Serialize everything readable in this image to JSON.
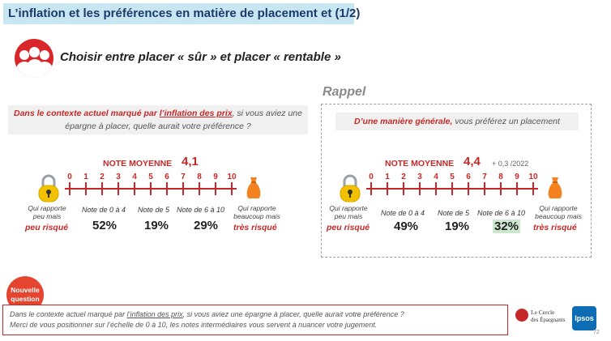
{
  "header": {
    "title": "L’inflation et les préférences en matière de placement et (1/2)"
  },
  "hero": {
    "icon": "people-covering-faces-icon",
    "title": "Choisir entre placer « sûr » et placer « rentable »"
  },
  "rappel": "Rappel",
  "left": {
    "question_pre": "Dans le contexte actuel marqué par ",
    "question_link": "l’inflation des prix",
    "question_post": ", si vous aviez une épargne à placer, quelle aurait votre préférence ?",
    "note_label": "NOTE MOYENNE",
    "note_value": "4,1",
    "scale": [
      "0",
      "1",
      "2",
      "3",
      "4",
      "5",
      "6",
      "7",
      "8",
      "9",
      "10"
    ],
    "left_label": "Qui rapporte peu mais",
    "left_risk": "peu risqué",
    "right_label": "Qui rapporte beaucoup mais",
    "right_risk": "très risqué",
    "groups": [
      {
        "label": "Note de 0 à 4",
        "value": "52%"
      },
      {
        "label": "Note de 5",
        "value": "19%"
      },
      {
        "label": "Note de 6 à 10",
        "value": "29%"
      }
    ]
  },
  "right": {
    "question_bold": "D’une manière générale,",
    "question_rest": " vous préférez un placement",
    "note_label": "NOTE MOYENNE",
    "note_value": "4,4",
    "delta": "+ 0,3 /2022",
    "scale": [
      "0",
      "1",
      "2",
      "3",
      "4",
      "5",
      "6",
      "7",
      "8",
      "9",
      "10"
    ],
    "left_label": "Qui rapporte peu mais",
    "left_risk": "peu risqué",
    "right_label": "Qui rapporte beaucoup mais",
    "right_risk": "très risqué",
    "groups": [
      {
        "label": "Note de 0 à 4",
        "value": "49%"
      },
      {
        "label": "Note de 5",
        "value": "19%"
      },
      {
        "label": "Note de 6 à 10",
        "value": "32%",
        "highlight": true
      }
    ]
  },
  "badge": {
    "line1": "Nouvelle",
    "line2": "question"
  },
  "footer": {
    "line1_pre": "Dans le contexte actuel marqué par ",
    "line1_link": "l’inflation des prix",
    "line1_post": ", si vous aviez une épargne à placer, quelle aurait votre préférence ?",
    "line2": "Merci de vous positionner sur l’échelle de 0 à 10, les notes intermédiaires vous servent à nuancer votre jugement."
  },
  "logos": {
    "cercle_line1": "Le Cercle",
    "cercle_line2": "des Épargnants",
    "ipsos": "Ipsos"
  },
  "page_number": "72",
  "colors": {
    "accent": "#c62828",
    "title_bg": "#c8e6f2",
    "highlight": "#cde8cf"
  }
}
